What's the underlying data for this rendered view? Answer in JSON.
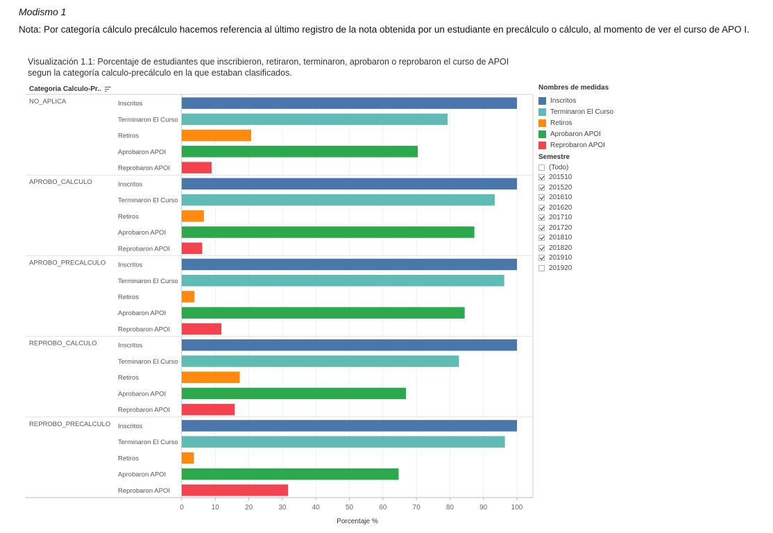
{
  "page": {
    "title": "Modismo 1",
    "note": "Nota: Por categoría cálculo precálculo hacemos referencia al último registro de la nota obtenida por un estudiante en precálculo o cálculo, al momento de ver el curso de APO I.",
    "viz_title_line1": "Visualización 1.1: Porcentaje de estudiantes que inscribieron, retiraron, terminaron, aprobaron o reprobaron el curso de APOI",
    "viz_title_line2": "segun la categoría calculo-precálculo en la que estaban clasificados.",
    "row_header": "Categoria Calculo-Pr.."
  },
  "legend": {
    "title": "Nombres de medidas",
    "items": [
      {
        "label": "Inscritos",
        "color": "#4a77ab"
      },
      {
        "label": "Terminaron El Curso",
        "color": "#5fbbb3"
      },
      {
        "label": "Retiros",
        "color": "#ff8a0e"
      },
      {
        "label": "Aprobaron APOI",
        "color": "#2ca84d"
      },
      {
        "label": "Reprobaron APOI",
        "color": "#f2434f"
      }
    ]
  },
  "filter": {
    "title": "Semestre",
    "items": [
      {
        "label": "(Todo)",
        "checked": false
      },
      {
        "label": "201510",
        "checked": true
      },
      {
        "label": "201520",
        "checked": true
      },
      {
        "label": "201610",
        "checked": true
      },
      {
        "label": "201620",
        "checked": true
      },
      {
        "label": "201710",
        "checked": true
      },
      {
        "label": "201720",
        "checked": true
      },
      {
        "label": "201810",
        "checked": true
      },
      {
        "label": "201820",
        "checked": true
      },
      {
        "label": "201910",
        "checked": true
      },
      {
        "label": "201920",
        "checked": false
      }
    ]
  },
  "chart_data": {
    "type": "bar",
    "orientation": "horizontal",
    "xlabel": "Porcentaje %",
    "xlim": [
      0,
      100
    ],
    "xticks": [
      0,
      10,
      20,
      30,
      40,
      50,
      60,
      70,
      80,
      90,
      100
    ],
    "measures": [
      "Inscritos",
      "Terminaron El Curso",
      "Retiros",
      "Aprobaron APOI",
      "Reprobaron APOI"
    ],
    "groups": [
      {
        "category": "NO_APLICA",
        "values": [
          100,
          79.3,
          20.7,
          70.4,
          8.9
        ]
      },
      {
        "category": "APROBO_CALCULO",
        "values": [
          100,
          93.4,
          6.6,
          87.3,
          6.1
        ]
      },
      {
        "category": "APROBO_PRECALCULO",
        "values": [
          100,
          96.2,
          3.8,
          84.4,
          11.8
        ]
      },
      {
        "category": "REPROBO_CALCULO",
        "values": [
          100,
          82.7,
          17.3,
          66.9,
          15.8
        ]
      },
      {
        "category": "REPROBO_PRECALCULO",
        "values": [
          100,
          96.4,
          3.6,
          64.7,
          31.7
        ]
      }
    ]
  }
}
